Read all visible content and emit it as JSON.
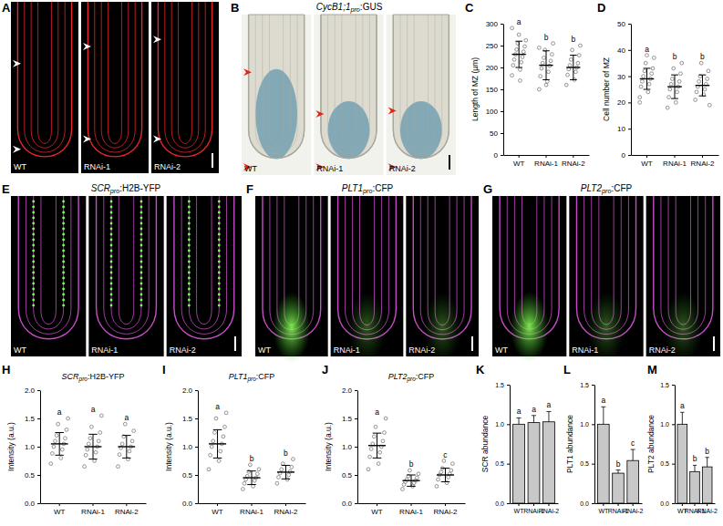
{
  "image_panels": [
    {
      "panel": "A",
      "labels": [
        "WT",
        "RNAi-1",
        "RNAi-2"
      ]
    },
    {
      "panel": "B",
      "title": "CycB1;1pro:GUS",
      "labels": [
        "WT",
        "RNAi-1",
        "RNAi-2"
      ]
    },
    {
      "panel": "E",
      "title": "SCRpro:H2B-YFP",
      "labels": [
        "WT",
        "RNAi-1",
        "RNAi-2"
      ]
    },
    {
      "panel": "F",
      "title": "PLT1pro:CFP",
      "labels": [
        "WT",
        "RNAi-1",
        "RNAi-2"
      ]
    },
    {
      "panel": "G",
      "title": "PLT2pro:CFP",
      "labels": [
        "WT",
        "RNAi-1",
        "RNAi-2"
      ]
    }
  ],
  "chart_data": [
    {
      "panel": "C",
      "type": "scatter",
      "y_label": "Length of MZ (µm)",
      "categories": [
        "WT",
        "RNAi-1",
        "RNAi-2"
      ],
      "points": [
        [
          182,
          195,
          205,
          212,
          218,
          224,
          230,
          236,
          241,
          248,
          255,
          262,
          275,
          290,
          170
        ],
        [
          150,
          168,
          180,
          190,
          198,
          204,
          210,
          215,
          222,
          230,
          240,
          255,
          160,
          245
        ],
        [
          160,
          172,
          183,
          190,
          196,
          200,
          205,
          210,
          218,
          228,
          240,
          250
        ]
      ],
      "values": [
        230,
        205,
        200
      ],
      "error": [
        30,
        33,
        28
      ],
      "letters": [
        "a",
        "b",
        "b"
      ],
      "ylim": [
        0,
        300
      ],
      "yticks": [
        0,
        50,
        100,
        150,
        200,
        250,
        300
      ]
    },
    {
      "panel": "D",
      "type": "scatter",
      "y_label": "Cell number of MZ",
      "categories": [
        "WT",
        "RNAi-1",
        "RNAi-2"
      ],
      "points": [
        [
          22,
          24,
          26,
          27,
          28,
          29,
          30,
          31,
          32,
          33,
          35,
          37,
          38,
          20
        ],
        [
          18,
          20,
          22,
          24,
          25,
          26,
          27,
          28,
          29,
          31,
          33,
          35
        ],
        [
          21,
          23,
          24,
          25,
          26,
          27,
          28,
          29,
          30,
          32,
          35,
          19
        ]
      ],
      "values": [
        29,
        26,
        26.5
      ],
      "error": [
        4,
        4.5,
        4
      ],
      "letters": [
        "a",
        "b",
        "b"
      ],
      "ylim": [
        0,
        50
      ],
      "yticks": [
        0,
        10,
        20,
        30,
        40,
        50
      ]
    },
    {
      "panel": "H",
      "type": "scatter",
      "title": "SCRpro:H2B-YFP",
      "y_label": "Intensity (a.u.)",
      "categories": [
        "WT",
        "RNAi-1",
        "RNAi-2"
      ],
      "points": [
        [
          0.7,
          0.8,
          0.88,
          0.95,
          1.0,
          1.05,
          1.1,
          1.15,
          1.2,
          1.3,
          1.4,
          1.5
        ],
        [
          0.65,
          0.75,
          0.85,
          0.9,
          0.95,
          1.0,
          1.05,
          1.1,
          1.15,
          1.25,
          1.35,
          1.55
        ],
        [
          0.65,
          0.78,
          0.86,
          0.92,
          0.98,
          1.0,
          1.05,
          1.1,
          1.18,
          1.28,
          1.4
        ]
      ],
      "values": [
        1.05,
        1.0,
        1.0
      ],
      "error": [
        0.2,
        0.22,
        0.2
      ],
      "letters": [
        "a",
        "a",
        "a"
      ],
      "ylim": [
        0,
        2
      ],
      "yticks": [
        {
          "value": 0,
          "label": "0.0"
        },
        0.5,
        {
          "value": 1,
          "label": "1.0"
        },
        1.5,
        {
          "value": 2,
          "label": "2.0"
        }
      ]
    },
    {
      "panel": "I",
      "type": "scatter",
      "title": "PLT1pro:CFP",
      "y_label": "Intensity (a.u.)",
      "categories": [
        "WT",
        "RNAi-1",
        "RNAi-2"
      ],
      "points": [
        [
          0.6,
          0.75,
          0.85,
          0.92,
          1.0,
          1.05,
          1.1,
          1.18,
          1.25,
          1.35,
          1.5,
          1.6
        ],
        [
          0.25,
          0.3,
          0.35,
          0.4,
          0.42,
          0.45,
          0.48,
          0.52,
          0.56,
          0.6,
          0.68
        ],
        [
          0.35,
          0.42,
          0.46,
          0.5,
          0.53,
          0.56,
          0.6,
          0.64,
          0.7,
          0.78
        ]
      ],
      "values": [
        1.05,
        0.45,
        0.55
      ],
      "error": [
        0.25,
        0.12,
        0.12
      ],
      "letters": [
        "a",
        "b",
        "b"
      ],
      "ylim": [
        0,
        2
      ],
      "yticks": [
        {
          "value": 0,
          "label": "0.0"
        },
        0.5,
        {
          "value": 1,
          "label": "1.0"
        },
        1.5,
        {
          "value": 2,
          "label": "2.0"
        }
      ]
    },
    {
      "panel": "J",
      "type": "scatter",
      "title": "PLT2pro:CFP",
      "y_label": "Intensity (a.u.)",
      "categories": [
        "WT",
        "RNAi-1",
        "RNAi-2"
      ],
      "points": [
        [
          0.6,
          0.7,
          0.82,
          0.9,
          0.96,
          1.0,
          1.05,
          1.1,
          1.18,
          1.25,
          1.35,
          1.5
        ],
        [
          0.25,
          0.3,
          0.33,
          0.36,
          0.38,
          0.4,
          0.42,
          0.45,
          0.48,
          0.52,
          0.58
        ],
        [
          0.3,
          0.36,
          0.42,
          0.46,
          0.5,
          0.52,
          0.55,
          0.58,
          0.62,
          0.7,
          0.75
        ]
      ],
      "values": [
        1.02,
        0.4,
        0.5
      ],
      "error": [
        0.22,
        0.1,
        0.12
      ],
      "letters": [
        "a",
        "b",
        "c"
      ],
      "ylim": [
        0,
        2
      ],
      "yticks": [
        {
          "value": 0,
          "label": "0.0"
        },
        0.5,
        {
          "value": 1,
          "label": "1.0"
        },
        1.5,
        {
          "value": 2,
          "label": "2.0"
        }
      ]
    },
    {
      "panel": "K",
      "type": "bar",
      "y_label": "SCR abundance",
      "categories": [
        "WT",
        "RNAi-1",
        "RNAi-2"
      ],
      "values": [
        1.0,
        1.02,
        1.03
      ],
      "error": [
        0.08,
        0.09,
        0.13
      ],
      "letters": [
        "a",
        "a",
        "a"
      ],
      "color": "#c8c8c8",
      "ylim": [
        0,
        1.5
      ],
      "yticks": [
        {
          "value": 0,
          "label": "0.0"
        },
        0.5,
        {
          "value": 1,
          "label": "1.0"
        },
        1.5
      ]
    },
    {
      "panel": "L",
      "type": "bar",
      "y_label": "PLT1 abundance",
      "categories": [
        "WT",
        "RNAi-1",
        "RNAi-2"
      ],
      "values": [
        1.0,
        0.38,
        0.54
      ],
      "error": [
        0.22,
        0.04,
        0.14
      ],
      "letters": [
        "a",
        "b",
        "c"
      ],
      "color": "#c8c8c8",
      "ylim": [
        0,
        1.5
      ],
      "yticks": [
        {
          "value": 0,
          "label": "0.0"
        },
        0.5,
        {
          "value": 1,
          "label": "1.0"
        },
        1.5
      ]
    },
    {
      "panel": "M",
      "type": "bar",
      "y_label": "PLT2 abundance",
      "categories": [
        "WT",
        "RNAi-1",
        "RNAi-2"
      ],
      "values": [
        1.0,
        0.4,
        0.46
      ],
      "error": [
        0.15,
        0.08,
        0.12
      ],
      "letters": [
        "a",
        "b",
        "b"
      ],
      "color": "#c8c8c8",
      "ylim": [
        0,
        1.5
      ],
      "yticks": [
        {
          "value": 0,
          "label": "0.0"
        },
        0.5,
        {
          "value": 1,
          "label": "1.0"
        },
        1.5
      ]
    }
  ]
}
